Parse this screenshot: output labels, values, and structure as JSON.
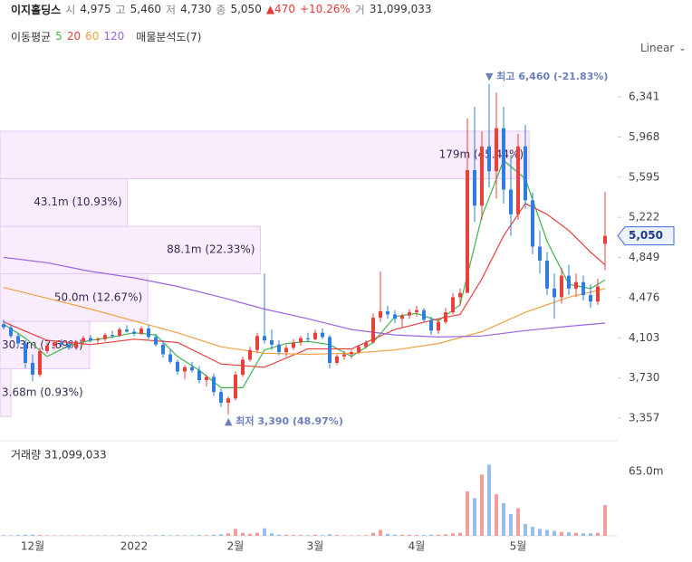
{
  "header": {
    "name": "이지홀딩스",
    "open_label": "시",
    "open": "4,975",
    "high_label": "고",
    "high": "5,460",
    "low_label": "저",
    "low": "4,730",
    "close_label": "종",
    "close": "5,050",
    "change": "▲470",
    "change_pct": "+10.26%",
    "volume_label": "거",
    "volume": "31,099,033"
  },
  "indicators": {
    "label": "이동평균",
    "analysis": "매물분석도(7)"
  },
  "scale_button": "Linear",
  "chart_data": {
    "type": "candlestick",
    "categories": [
      null,
      null,
      null,
      null,
      "12월",
      null,
      null,
      null,
      null,
      null,
      null,
      null,
      null,
      null,
      null,
      null,
      null,
      null,
      "2022",
      null,
      null,
      null,
      null,
      null,
      null,
      null,
      null,
      null,
      null,
      null,
      null,
      null,
      "2월",
      null,
      null,
      null,
      null,
      null,
      null,
      null,
      null,
      null,
      null,
      "3월",
      null,
      null,
      null,
      null,
      null,
      null,
      null,
      null,
      null,
      null,
      null,
      null,
      null,
      "4월",
      null,
      null,
      null,
      null,
      null,
      null,
      null,
      null,
      null,
      null,
      null,
      null,
      null,
      "5월",
      null,
      null,
      null,
      null,
      null,
      null,
      null,
      null,
      null,
      null,
      null,
      null
    ],
    "ohlc": [
      [
        4230,
        4270,
        4180,
        4200
      ],
      [
        4200,
        4220,
        4100,
        4120
      ],
      [
        4120,
        4150,
        4020,
        4050
      ],
      [
        4050,
        4080,
        3820,
        3870
      ],
      [
        3870,
        3950,
        3700,
        3760
      ],
      [
        3760,
        4010,
        3740,
        3980
      ],
      [
        3980,
        4060,
        3960,
        4030
      ],
      [
        4030,
        4080,
        4000,
        4060
      ],
      [
        4060,
        4090,
        4020,
        4040
      ],
      [
        4040,
        4070,
        3990,
        4010
      ],
      [
        4010,
        4080,
        3990,
        4070
      ],
      [
        4070,
        4120,
        4040,
        4100
      ],
      [
        4100,
        4130,
        4060,
        4080
      ],
      [
        4080,
        4110,
        4040,
        4090
      ],
      [
        4090,
        4150,
        4070,
        4130
      ],
      [
        4130,
        4170,
        4100,
        4120
      ],
      [
        4120,
        4200,
        4110,
        4180
      ],
      [
        4180,
        4220,
        4150,
        4160
      ],
      [
        4160,
        4190,
        4120,
        4140
      ],
      [
        4140,
        4210,
        4130,
        4190
      ],
      [
        4190,
        4220,
        4090,
        4110
      ],
      [
        4110,
        4140,
        4020,
        4040
      ],
      [
        4040,
        4080,
        3920,
        3950
      ],
      [
        3950,
        4000,
        3860,
        3880
      ],
      [
        3880,
        3900,
        3760,
        3790
      ],
      [
        3790,
        3850,
        3720,
        3830
      ],
      [
        3830,
        3880,
        3780,
        3800
      ],
      [
        3800,
        3840,
        3680,
        3710
      ],
      [
        3710,
        3760,
        3650,
        3740
      ],
      [
        3740,
        3770,
        3560,
        3600
      ],
      [
        3600,
        3630,
        3460,
        3500
      ],
      [
        3500,
        3560,
        3390,
        3540
      ],
      [
        3540,
        3790,
        3520,
        3760
      ],
      [
        3760,
        3930,
        3740,
        3900
      ],
      [
        3900,
        4020,
        3880,
        3990
      ],
      [
        3990,
        4150,
        3960,
        4120
      ],
      [
        4120,
        4700,
        4050,
        4080
      ],
      [
        4080,
        4180,
        3990,
        4040
      ],
      [
        4040,
        4080,
        3940,
        3970
      ],
      [
        3970,
        4040,
        3930,
        4010
      ],
      [
        4010,
        4090,
        3990,
        4060
      ],
      [
        4060,
        4120,
        4030,
        4100
      ],
      [
        4100,
        4150,
        4060,
        4090
      ],
      [
        4090,
        4180,
        4080,
        4150
      ],
      [
        4150,
        4190,
        4090,
        4110
      ],
      [
        4110,
        4130,
        3820,
        3870
      ],
      [
        3870,
        3950,
        3850,
        3930
      ],
      [
        3930,
        3980,
        3900,
        3950
      ],
      [
        3950,
        3990,
        3910,
        3970
      ],
      [
        3970,
        4040,
        3950,
        4020
      ],
      [
        4020,
        4080,
        4000,
        4060
      ],
      [
        4060,
        4330,
        4050,
        4290
      ],
      [
        4290,
        4720,
        4250,
        4350
      ],
      [
        4350,
        4400,
        4280,
        4320
      ],
      [
        4320,
        4360,
        4240,
        4280
      ],
      [
        4280,
        4330,
        4200,
        4310
      ],
      [
        4310,
        4370,
        4280,
        4340
      ],
      [
        4340,
        4400,
        4300,
        4360
      ],
      [
        4360,
        4380,
        4250,
        4270
      ],
      [
        4270,
        4300,
        4130,
        4170
      ],
      [
        4170,
        4280,
        4140,
        4250
      ],
      [
        4250,
        4380,
        4230,
        4340
      ],
      [
        4340,
        4520,
        4320,
        4480
      ],
      [
        4480,
        4560,
        4400,
        4520
      ],
      [
        4520,
        6140,
        4520,
        5660
      ],
      [
        5660,
        6250,
        5180,
        5330
      ],
      [
        5330,
        6020,
        5200,
        5880
      ],
      [
        5880,
        6460,
        5500,
        5650
      ],
      [
        5650,
        6380,
        5400,
        6050
      ],
      [
        6050,
        6250,
        5350,
        5480
      ],
      [
        5480,
        5800,
        5050,
        5250
      ],
      [
        5250,
        6000,
        5200,
        5880
      ],
      [
        5880,
        6080,
        5300,
        5380
      ],
      [
        5380,
        5450,
        4880,
        4950
      ],
      [
        4950,
        5100,
        4700,
        4820
      ],
      [
        4820,
        4900,
        4500,
        4560
      ],
      [
        4560,
        4700,
        4280,
        4480
      ],
      [
        4480,
        4750,
        4420,
        4680
      ],
      [
        4680,
        4780,
        4500,
        4560
      ],
      [
        4560,
        4700,
        4480,
        4620
      ],
      [
        4620,
        4680,
        4450,
        4500
      ],
      [
        4500,
        4600,
        4380,
        4440
      ],
      [
        4440,
        4650,
        4410,
        4580
      ],
      [
        4975,
        5460,
        4730,
        5050
      ]
    ],
    "up_color": "#e8413c",
    "down_color": "#2f7de1",
    "ylim": [
      3206,
      6652
    ],
    "yticks": [
      {
        "value": 3357,
        "label": "3,357"
      },
      {
        "value": 3730,
        "label": "3,730"
      },
      {
        "value": 4103,
        "label": "4,103"
      },
      {
        "value": 4476,
        "label": "4,476"
      },
      {
        "value": 4849,
        "label": "4,849"
      },
      {
        "value": 5222,
        "label": "5,222"
      },
      {
        "value": 5595,
        "label": "5,595"
      },
      {
        "value": 5968,
        "label": "5,968"
      },
      {
        "value": 6341,
        "label": "6,341"
      }
    ],
    "log_scale": false,
    "grid": false,
    "current_price": {
      "value": 5050,
      "label": "5,050"
    },
    "annotations": [
      {
        "text": "▼ 최고 6,460 (-21.83%)",
        "value": 6460
      },
      {
        "text": "▲ 최저 3,390 (48.97%)",
        "value": 3390
      }
    ],
    "moving_averages": [
      {
        "name": "5",
        "color": "#3cb44b",
        "x": [
          0,
          3,
          6,
          9,
          12,
          15,
          18,
          21,
          24,
          27,
          30,
          33,
          36,
          39,
          42,
          45,
          48,
          51,
          54,
          57,
          60,
          63,
          66,
          69,
          72,
          75,
          78,
          81,
          83
        ],
        "values": [
          4230,
          4100,
          3930,
          4030,
          4080,
          4110,
          4150,
          4130,
          3930,
          3800,
          3640,
          3640,
          3990,
          4050,
          4070,
          4040,
          3930,
          4060,
          4300,
          4330,
          4260,
          4410,
          5230,
          5750,
          5580,
          5000,
          4600,
          4560,
          4640
        ]
      },
      {
        "name": "20",
        "color": "#e8413c",
        "x": [
          0,
          6,
          12,
          18,
          24,
          30,
          36,
          42,
          48,
          54,
          60,
          63,
          66,
          69,
          72,
          75,
          78,
          81,
          83
        ],
        "values": [
          4250,
          4080,
          4040,
          4090,
          4060,
          3860,
          3830,
          4000,
          4000,
          4180,
          4280,
          4320,
          4650,
          5050,
          5350,
          5250,
          5100,
          4900,
          4780
        ]
      },
      {
        "name": "60",
        "color": "#f0a040",
        "x": [
          0,
          6,
          12,
          18,
          24,
          30,
          36,
          42,
          48,
          54,
          60,
          66,
          72,
          78,
          83
        ],
        "values": [
          4570,
          4470,
          4370,
          4260,
          4150,
          4020,
          3960,
          3950,
          3960,
          3990,
          4050,
          4160,
          4340,
          4480,
          4560
        ]
      },
      {
        "name": "120",
        "color": "#9b63e0",
        "x": [
          0,
          6,
          12,
          18,
          24,
          30,
          36,
          42,
          48,
          54,
          60,
          66,
          72,
          78,
          83
        ],
        "values": [
          4850,
          4800,
          4720,
          4660,
          4580,
          4480,
          4370,
          4280,
          4180,
          4130,
          4110,
          4120,
          4170,
          4210,
          4240
        ]
      }
    ],
    "volume_profile": {
      "bins": [
        3373,
        3815,
        4256,
        4698,
        5139,
        5581,
        6022
      ],
      "values": [
        3.68,
        30.3,
        50.0,
        88.1,
        43.1,
        179
      ],
      "value_labels": [
        "3.68m (0.93%)",
        "30.3m (7.69%)",
        "50.0m (12.67%)",
        "88.1m (22.33%)",
        "43.1m (10.93%)",
        "179m (45.44%)"
      ],
      "xlim": [
        0,
        209
      ],
      "color": "#f6e6fc",
      "edge": "#e5c8f2"
    },
    "volume": {
      "title": "거래량 31,099,033",
      "ylim": [
        0,
        88800000
      ],
      "yticks": [
        {
          "value": 65000000,
          "label": "65.0m"
        }
      ],
      "values": [
        600000,
        500000,
        700000,
        900000,
        1200000,
        800000,
        500000,
        400000,
        400000,
        300000,
        400000,
        400000,
        300000,
        300000,
        500000,
        400000,
        600000,
        400000,
        300000,
        400000,
        500000,
        600000,
        700000,
        500000,
        600000,
        500000,
        500000,
        700000,
        600000,
        900000,
        1500000,
        2500000,
        7000000,
        3000000,
        2000000,
        3000000,
        7500000,
        2500000,
        1200000,
        900000,
        800000,
        700000,
        600000,
        900000,
        600000,
        1500000,
        800000,
        500000,
        400000,
        500000,
        600000,
        3000000,
        6000000,
        2000000,
        1200000,
        1000000,
        900000,
        800000,
        700000,
        1200000,
        900000,
        1500000,
        2500000,
        3000000,
        45000000,
        38000000,
        62000000,
        72000000,
        42000000,
        33000000,
        22000000,
        28000000,
        12000000,
        9000000,
        7000000,
        6000000,
        5000000,
        4000000,
        3500000,
        3000000,
        2500000,
        2500000,
        3000000,
        31099033
      ]
    }
  }
}
